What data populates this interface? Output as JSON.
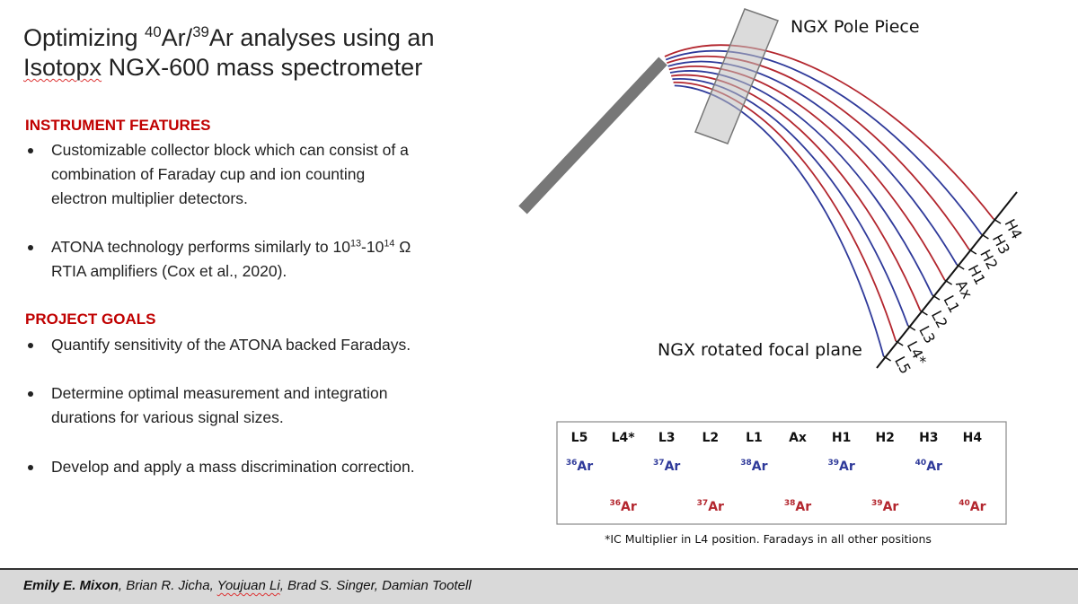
{
  "title": {
    "line1": [
      "Optimizing ",
      "40",
      "Ar/",
      "39",
      "Ar analyses using an"
    ],
    "line2": [
      "Isotopx",
      " NGX-600 mass spectrometer"
    ]
  },
  "instrument_features": {
    "heading": "INSTRUMENT FEATURES",
    "bullets": [
      [
        "Customizable collector block which can consist of a",
        "combination of Faraday cup and ion counting",
        "electron multiplier detectors."
      ],
      [
        [
          "ATONA technology performs similarly to 10",
          "13",
          "-10",
          "14",
          " Ω"
        ],
        "RTIA amplifiers (Cox et al., 2020)."
      ]
    ]
  },
  "project_goals": {
    "heading": "PROJECT GOALS",
    "bullets": [
      [
        "Quantify sensitivity of the ATONA backed Faradays."
      ],
      [
        "Determine optimal measurement and integration",
        "durations for various signal sizes."
      ],
      [
        "Develop and apply a mass discrimination correction."
      ]
    ]
  },
  "diagram": {
    "pole_piece_label": "NGX Pole Piece",
    "focal_plane_label": "NGX rotated focal plane",
    "collectors": [
      "H4",
      "H3",
      "H2",
      "H1",
      "Ax",
      "L1",
      "L2",
      "L3",
      "L4*",
      "L5"
    ]
  },
  "table": {
    "headers": [
      "L5",
      "L4*",
      "L3",
      "L2",
      "L1",
      "Ax",
      "H1",
      "H2",
      "H3",
      "H4"
    ],
    "rows": [
      [
        {
          "mass": "36",
          "element": "Ar"
        },
        null,
        {
          "mass": "37",
          "element": "Ar"
        },
        null,
        {
          "mass": "38",
          "element": "Ar"
        },
        null,
        {
          "mass": "39",
          "element": "Ar"
        },
        null,
        {
          "mass": "40",
          "element": "Ar"
        },
        null
      ],
      [
        null,
        {
          "mass": "36",
          "element": "Ar"
        },
        null,
        {
          "mass": "37",
          "element": "Ar"
        },
        null,
        {
          "mass": "38",
          "element": "Ar"
        },
        null,
        {
          "mass": "39",
          "element": "Ar"
        },
        null,
        {
          "mass": "40",
          "element": "Ar"
        }
      ]
    ],
    "footnote": "*IC Multiplier in L4 position. Faradays in all other positions"
  },
  "authors": [
    "Emily E. Mixon",
    ", Brian R. Jicha, ",
    "Youjuan Li",
    ", Brad S. Singer, Damian Tootell"
  ]
}
